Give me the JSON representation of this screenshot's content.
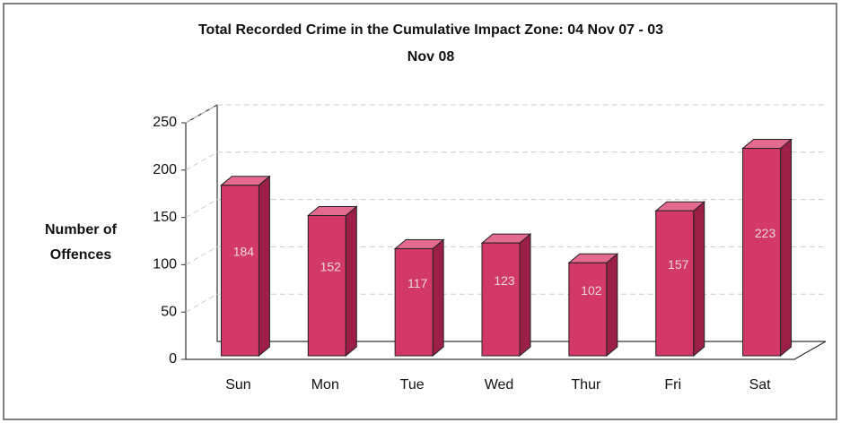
{
  "chart_data": {
    "type": "bar3d",
    "title": "Total Recorded Crime in the Cumulative Impact Zone: 04 Nov 07 - 03",
    "title_line2": "Nov 08",
    "y_label_line1": "Number of",
    "y_label_line2": "Offences",
    "categories": [
      "Sun",
      "Mon",
      "Tue",
      "Wed",
      "Thur",
      "Fri",
      "Sat"
    ],
    "values": [
      184,
      152,
      117,
      123,
      102,
      157,
      223
    ],
    "color": "#d23868",
    "ylim": [
      0,
      250
    ],
    "yticks": [
      0,
      50,
      100,
      150,
      200,
      250
    ],
    "grid": true
  }
}
